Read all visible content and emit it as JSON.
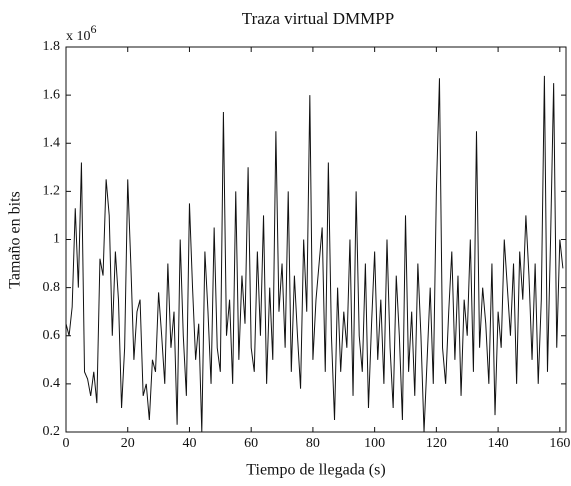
{
  "chart_data": {
    "type": "line",
    "title": "Traza virtual DMMPP",
    "x_label": "Tiempo de llegada (s)",
    "y_label": "Tamaño en bits",
    "y_scale": {
      "text": "x 10",
      "exponent": "6"
    },
    "xlim": [
      0,
      162
    ],
    "ylim": [
      0.2,
      1.8
    ],
    "xticks": [
      0,
      20,
      40,
      60,
      80,
      100,
      120,
      140,
      160
    ],
    "yticks": [
      0.2,
      0.4,
      0.6,
      0.8,
      1,
      1.2,
      1.4,
      1.6,
      1.8
    ],
    "grid": false,
    "x": [
      0,
      1,
      2,
      3,
      4,
      5,
      6,
      7,
      8,
      9,
      10,
      11,
      12,
      13,
      14,
      15,
      16,
      17,
      18,
      19,
      20,
      21,
      22,
      23,
      24,
      25,
      26,
      27,
      28,
      29,
      30,
      31,
      32,
      33,
      34,
      35,
      36,
      37,
      38,
      39,
      40,
      41,
      42,
      43,
      44,
      45,
      46,
      47,
      48,
      49,
      50,
      51,
      52,
      53,
      54,
      55,
      56,
      57,
      58,
      59,
      60,
      61,
      62,
      63,
      64,
      65,
      66,
      67,
      68,
      69,
      70,
      71,
      72,
      73,
      74,
      75,
      76,
      77,
      78,
      79,
      80,
      81,
      82,
      83,
      84,
      85,
      86,
      87,
      88,
      89,
      90,
      91,
      92,
      93,
      94,
      95,
      96,
      97,
      98,
      99,
      100,
      101,
      102,
      103,
      104,
      105,
      106,
      107,
      108,
      109,
      110,
      111,
      112,
      113,
      114,
      115,
      116,
      117,
      118,
      119,
      120,
      121,
      122,
      123,
      124,
      125,
      126,
      127,
      128,
      129,
      130,
      131,
      132,
      133,
      134,
      135,
      136,
      137,
      138,
      139,
      140,
      141,
      142,
      143,
      144,
      145,
      146,
      147,
      148,
      149,
      150,
      151,
      152,
      153,
      154,
      155,
      156,
      157,
      158,
      159,
      160,
      161
    ],
    "series": [
      {
        "color": "#111111",
        "values": [
          0.65,
          0.6,
          0.72,
          1.13,
          0.8,
          1.32,
          0.45,
          0.42,
          0.35,
          0.45,
          0.32,
          0.92,
          0.85,
          1.25,
          1.1,
          0.6,
          0.95,
          0.75,
          0.3,
          0.55,
          1.25,
          0.9,
          0.5,
          0.7,
          0.75,
          0.35,
          0.4,
          0.25,
          0.5,
          0.45,
          0.78,
          0.6,
          0.4,
          0.9,
          0.55,
          0.7,
          0.23,
          1.0,
          0.6,
          0.35,
          1.15,
          0.8,
          0.5,
          0.65,
          0.2,
          0.95,
          0.7,
          0.4,
          1.05,
          0.55,
          0.45,
          1.53,
          0.6,
          0.75,
          0.4,
          1.2,
          0.5,
          0.85,
          0.65,
          1.3,
          0.55,
          0.45,
          0.95,
          0.6,
          1.1,
          0.4,
          0.8,
          0.5,
          1.45,
          0.7,
          0.9,
          0.55,
          1.2,
          0.45,
          0.85,
          0.6,
          0.38,
          1.0,
          0.7,
          1.6,
          0.5,
          0.75,
          0.9,
          1.05,
          0.45,
          1.32,
          0.6,
          0.25,
          0.8,
          0.45,
          0.7,
          0.55,
          1.0,
          0.35,
          1.2,
          0.6,
          0.45,
          0.9,
          0.3,
          0.65,
          0.95,
          0.5,
          0.75,
          0.4,
          1.0,
          0.55,
          0.3,
          0.85,
          0.6,
          0.25,
          1.1,
          0.45,
          0.7,
          0.35,
          0.9,
          0.6,
          0.2,
          0.5,
          0.8,
          0.4,
          1.2,
          1.67,
          0.55,
          0.4,
          0.7,
          0.95,
          0.5,
          0.85,
          0.35,
          0.75,
          0.6,
          1.0,
          0.45,
          1.45,
          0.55,
          0.8,
          0.65,
          0.4,
          0.9,
          0.27,
          0.7,
          0.55,
          1.0,
          0.8,
          0.6,
          0.9,
          0.4,
          0.95,
          0.75,
          1.1,
          0.85,
          0.5,
          0.9,
          0.4,
          0.75,
          1.68,
          0.45,
          1.0,
          1.65,
          0.55,
          1.0,
          0.88
        ]
      }
    ]
  }
}
